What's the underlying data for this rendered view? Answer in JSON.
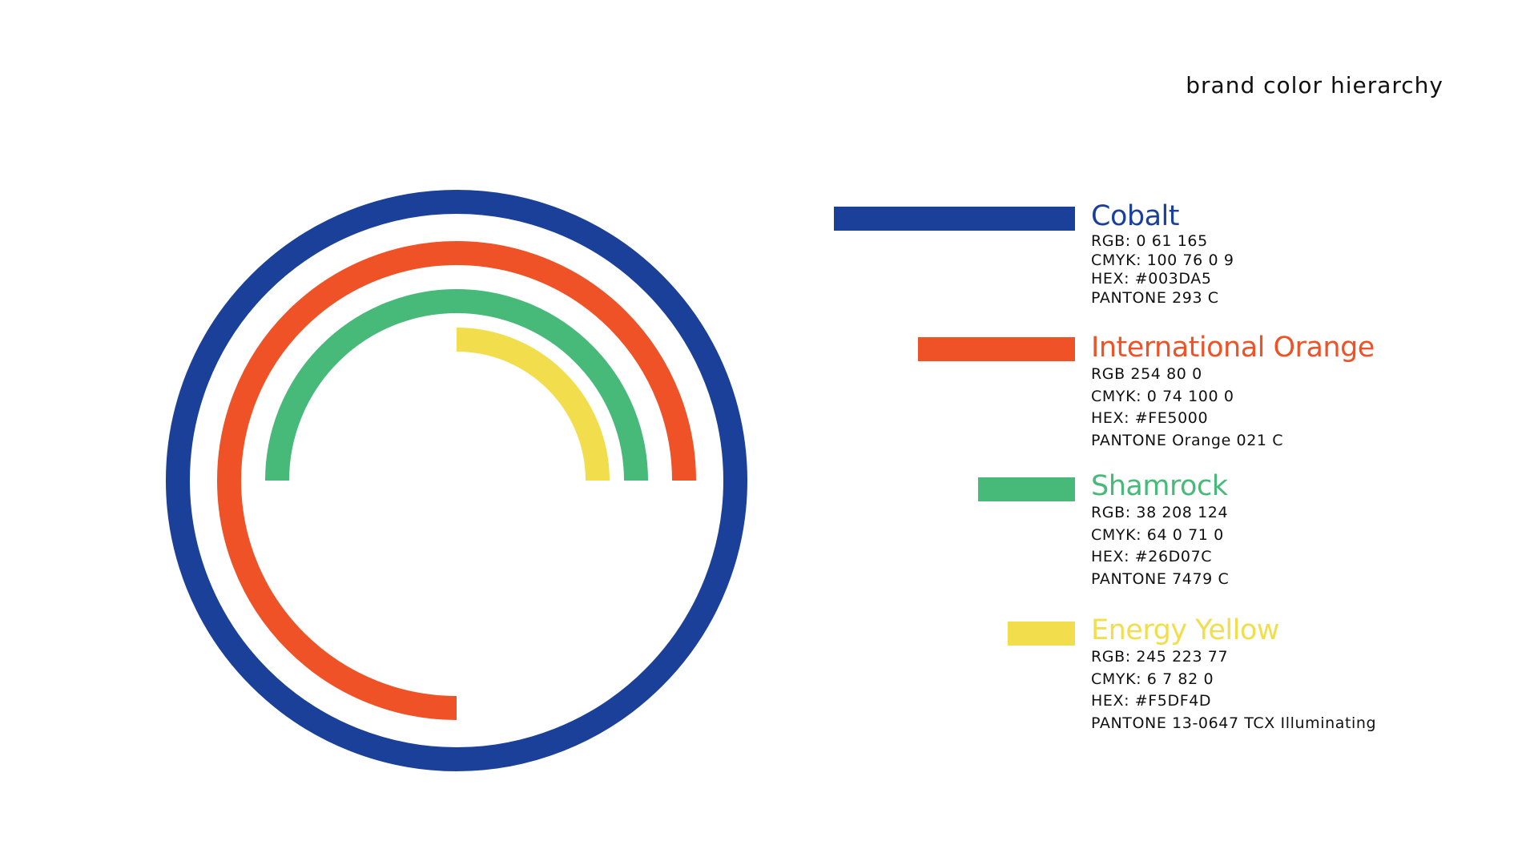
{
  "title": "brand color hierarchy",
  "colors": {
    "cobalt": {
      "name": "Cobalt",
      "color": "#1B409A",
      "specs": [
        "RGB: 0 61 165",
        "CMYK: 100 76 0 9",
        "HEX: #003DA5",
        "PANTONE 293 C"
      ]
    },
    "orange": {
      "name": "International Orange",
      "color": "#EE5226",
      "specs": [
        "RGB 254 80 0",
        "CMYK: 0 74 100 0",
        "HEX: #FE5000",
        "PANTONE Orange 021 C"
      ]
    },
    "shamrock": {
      "name": "Shamrock",
      "color": "#47B978",
      "specs": [
        "RGB: 38 208 124",
        "CMYK: 64 0 71 0",
        "HEX: #26D07C",
        "PANTONE 7479 C"
      ]
    },
    "yellow": {
      "name": "Energy Yellow",
      "color": "#F2DE4D",
      "specs": [
        "RGB: 245 223 77",
        "CMYK: 6 7 82 0",
        "HEX: #F5DF4D",
        "PANTONE  13-0647 TCX Illuminating"
      ]
    }
  }
}
